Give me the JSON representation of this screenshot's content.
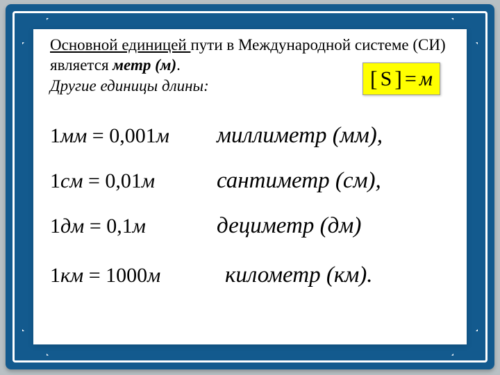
{
  "colors": {
    "frame_bg": "#135a8e",
    "frame_line": "#ffffff",
    "card_bg": "#ffffff",
    "page_bg": "#b8c0c4",
    "highlight_bg": "#ffff00",
    "text": "#000000"
  },
  "typography": {
    "body_family": "Times New Roman",
    "intro_size_pt": 17,
    "equation_size_pt": 22,
    "name_size_pt": 25
  },
  "intro": {
    "main_unit": "Основной единицей ",
    "rest1": "пути в Международной системе (СИ) является ",
    "metr": "метр (м)",
    "dot": ".",
    "other": "Другие единицы длины:"
  },
  "formula": {
    "lbr": "[",
    "S": "S",
    "rbr": "]",
    "eq": "=",
    "m": "м"
  },
  "rows": [
    {
      "lhs_num": "1",
      "lhs_unit": "мм",
      "eq": " = ",
      "rhs_num": "0,001",
      "rhs_unit": "м",
      "name": "миллиметр (мм),"
    },
    {
      "lhs_num": "1",
      "lhs_unit": "см",
      "eq": " = ",
      "rhs_num": "0,01",
      "rhs_unit": "м",
      "name": "сантиметр (см),"
    },
    {
      "lhs_num": "1",
      "lhs_unit": "дм",
      "eq": " = ",
      "rhs_num": "0,1",
      "rhs_unit": "м",
      "name": "дециметр (дм)"
    },
    {
      "lhs_num": "1",
      "lhs_unit": "км",
      "eq": " = ",
      "rhs_num": "1000",
      "rhs_unit": "м",
      "name": "километр (км)."
    }
  ]
}
